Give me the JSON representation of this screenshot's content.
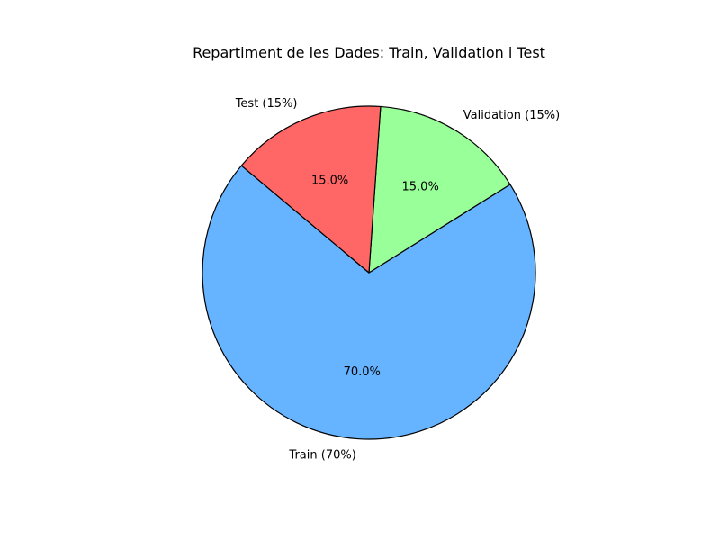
{
  "chart_data": {
    "type": "pie",
    "title": "Repartiment de les Dades: Train, Validation i Test",
    "categories": [
      "Train (70%)",
      "Validation (15%)",
      "Test (15%)"
    ],
    "values": [
      70,
      15,
      15
    ],
    "percent_labels": [
      "70.0%",
      "15.0%",
      "15.0%"
    ],
    "colors": [
      "#66b3ff",
      "#99ff99",
      "#ff6666"
    ],
    "start_angle_deg": 140,
    "direction": "counterclockwise",
    "edge_color": "#000000",
    "legend": "none"
  }
}
